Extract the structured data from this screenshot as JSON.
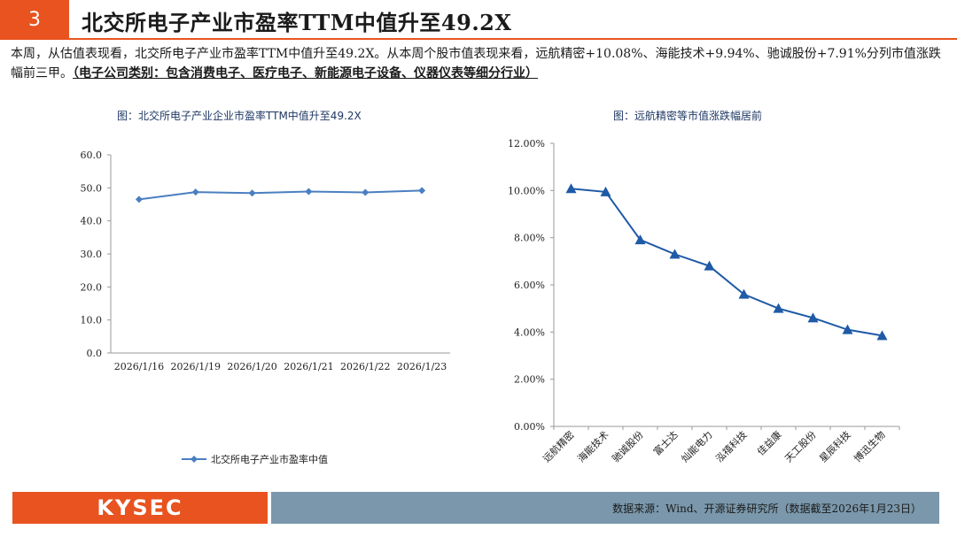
{
  "header": {
    "number": "3",
    "title": "北交所电子产业市盈率TTM中值升至49.2X"
  },
  "summary": {
    "text": "本周，从估值表现看，北交所电子产业市盈率TTM中值升至49.2X。从本周个股市值表现来看，远航精密+10.08%、海能技术+9.94%、驰诚股份+7.91%分列市值涨跌幅前三甲。",
    "emphasis": "（电子公司类别：包含消费电子、医疗电子、新能源电子设备、仪器仪表等细分行业）"
  },
  "chart_data": [
    {
      "type": "line",
      "title": "图：北交所电子产业企业市盈率TTM中值升至49.2X",
      "categories": [
        "2026/1/16",
        "2026/1/19",
        "2026/1/20",
        "2026/1/21",
        "2026/1/22",
        "2026/1/23"
      ],
      "series": [
        {
          "name": "北交所电子产业市盈率中值",
          "values": [
            46.5,
            48.7,
            48.4,
            48.9,
            48.6,
            49.2
          ]
        }
      ],
      "yticks": [
        "0.0",
        "10.0",
        "20.0",
        "30.0",
        "40.0",
        "50.0",
        "60.0"
      ],
      "ylim": [
        0,
        60
      ],
      "legend": "bottom",
      "color": "#4a7fc1"
    },
    {
      "type": "line",
      "title": "图：远航精密等市值涨跌幅居前",
      "categories": [
        "远航精密",
        "海能技术",
        "驰诚股份",
        "富士达",
        "灿能电力",
        "泓禧科技",
        "佳益康",
        "天工股份",
        "星辰科技",
        "博迅生物"
      ],
      "series": [
        {
          "values": [
            10.08,
            9.94,
            7.91,
            7.3,
            6.8,
            5.6,
            5.0,
            4.6,
            4.1,
            3.85
          ]
        }
      ],
      "yticks": [
        "0.00%",
        "2.00%",
        "4.00%",
        "6.00%",
        "8.00%",
        "10.00%",
        "12.00%"
      ],
      "ylim": [
        0,
        12
      ],
      "color": "#1f5aa6"
    }
  ],
  "footer": {
    "logo": "KYSEC",
    "source": "数据来源：Wind、开源证券研究所（数据截至2026年1月23日）"
  }
}
